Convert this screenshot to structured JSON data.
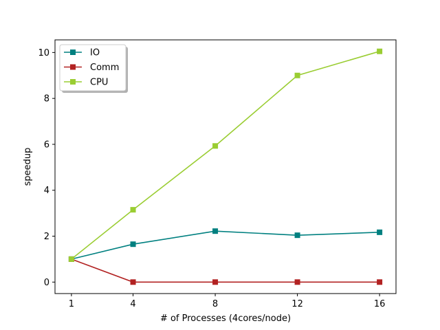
{
  "chart_data": {
    "type": "line",
    "title": "",
    "xlabel": "# of Processes (4cores/node)",
    "ylabel": "speedup",
    "x": [
      1,
      4,
      8,
      12,
      16
    ],
    "x_tick_labels": [
      "1",
      "4",
      "8",
      "12",
      "16"
    ],
    "y_ticks": [
      0,
      2,
      4,
      6,
      8,
      10
    ],
    "y_tick_labels": [
      "0",
      "2",
      "4",
      "6",
      "8",
      "10"
    ],
    "xlim": [
      0.2,
      16.8
    ],
    "ylim": [
      -0.5,
      10.55
    ],
    "grid": false,
    "legend_position": "top-left",
    "marker": "square",
    "series": [
      {
        "name": "IO",
        "color": "#008080",
        "values": [
          1.0,
          1.65,
          2.22,
          2.04,
          2.17
        ]
      },
      {
        "name": "Comm",
        "color": "#b22222",
        "values": [
          1.0,
          0.0,
          0.0,
          0.0,
          0.0
        ]
      },
      {
        "name": "CPU",
        "color": "#9acd32",
        "values": [
          1.0,
          3.15,
          5.93,
          9.0,
          10.05
        ]
      }
    ]
  }
}
